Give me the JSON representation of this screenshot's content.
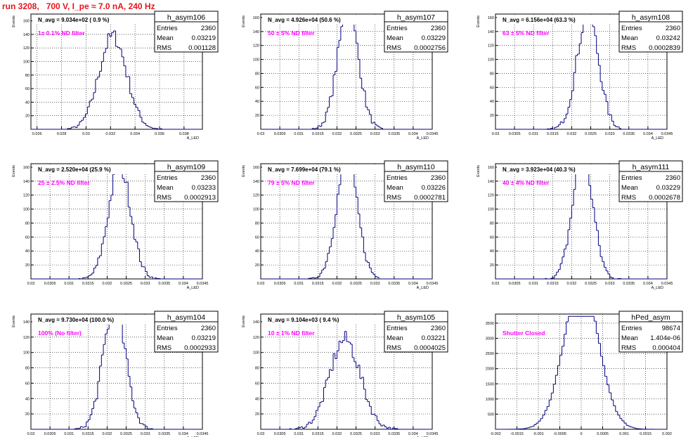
{
  "page_title": "run 3208,   700 V, I_pe ≈ 7.0 nA, 240 Hz",
  "colors": {
    "hist_line": "#000080",
    "frame": "#000000",
    "grid": "#000000",
    "annotation": "#ff00ff",
    "title": "#e8141c"
  },
  "chart_data": [
    {
      "type": "histogram",
      "name": "h_asym106",
      "xlabel": "A_LED",
      "ylabel": "Events",
      "avg_text": "N_avg = 9.034e+02 ( 0.9 %)",
      "filter_text": "1± 0.1% ND filter",
      "stats": {
        "entries": "2360",
        "mean": "0.03219",
        "rms": "0.001128"
      },
      "xlim": [
        0.0255,
        0.0395
      ],
      "ylim": [
        0,
        170
      ],
      "xticks": [
        0.026,
        0.028,
        0.03,
        0.032,
        0.034,
        0.036,
        0.038
      ],
      "xtick_labels": [
        "0.026",
        "0.028",
        "0.03",
        "0.032",
        "0.034",
        "0.036",
        "0.038"
      ],
      "yticks": [
        20,
        40,
        60,
        80,
        100,
        120,
        140,
        160
      ],
      "ytick_labels": [
        "20",
        "40",
        "60",
        "80",
        "100",
        "120",
        "140",
        "160"
      ],
      "grid": true,
      "mean_value": 0.03219,
      "sigma": 0.001128,
      "total": 2360,
      "bins": 85
    },
    {
      "type": "histogram",
      "name": "h_asym107",
      "xlabel": "A_LED",
      "ylabel": "Events",
      "avg_text": "N_avg = 4.926e+04 (50.6 %)",
      "filter_text": "50 ± 5% ND filter",
      "stats": {
        "entries": "2360",
        "mean": "0.03229",
        "rms": "0.0002756"
      },
      "xlim": [
        0.03,
        0.0345
      ],
      "ylim": [
        0,
        165
      ],
      "xticks": [
        0.03,
        0.0305,
        0.031,
        0.0315,
        0.032,
        0.0325,
        0.033,
        0.0335,
        0.034,
        0.0345
      ],
      "xtick_labels": [
        "0.03",
        "0.0305",
        "0.031",
        "0.0315",
        "0.032",
        "0.0325",
        "0.033",
        "0.0335",
        "0.034",
        "0.0345"
      ],
      "yticks": [
        20,
        40,
        60,
        80,
        100,
        120,
        140,
        160
      ],
      "ytick_labels": [
        "20",
        "40",
        "60",
        "80",
        "100",
        "120",
        "140",
        "160"
      ],
      "grid": true,
      "mean_value": 0.03229,
      "sigma": 0.0002756,
      "total": 2360,
      "bins": 90
    },
    {
      "type": "histogram",
      "name": "h_asym108",
      "xlabel": "A_LED",
      "ylabel": "Events",
      "avg_text": "N_avg = 6.156e+04 (63.3 %)",
      "filter_text": "63 ± 5% ND filter",
      "stats": {
        "entries": "2360",
        "mean": "0.03242",
        "rms": "0.0002839"
      },
      "xlim": [
        0.03,
        0.0345
      ],
      "ylim": [
        0,
        165
      ],
      "xticks": [
        0.03,
        0.0305,
        0.031,
        0.0315,
        0.032,
        0.0325,
        0.033,
        0.0335,
        0.034,
        0.0345
      ],
      "xtick_labels": [
        "0.03",
        "0.0305",
        "0.031",
        "0.0315",
        "0.032",
        "0.0325",
        "0.033",
        "0.0335",
        "0.034",
        "0.0345"
      ],
      "yticks": [
        20,
        40,
        60,
        80,
        100,
        120,
        140,
        160
      ],
      "ytick_labels": [
        "20",
        "40",
        "60",
        "80",
        "100",
        "120",
        "140",
        "160"
      ],
      "grid": true,
      "mean_value": 0.03242,
      "sigma": 0.0002839,
      "total": 2360,
      "bins": 90
    },
    {
      "type": "histogram",
      "name": "h_asym109",
      "xlabel": "A_LED",
      "ylabel": "Events",
      "avg_text": "N_avg = 2.520e+04 (25.9 %)",
      "filter_text": "25 ± 2.5% ND filter",
      "stats": {
        "entries": "2360",
        "mean": "0.03233",
        "rms": "0.0002913"
      },
      "xlim": [
        0.03,
        0.0345
      ],
      "ylim": [
        0,
        165
      ],
      "xticks": [
        0.03,
        0.0305,
        0.031,
        0.0315,
        0.032,
        0.0325,
        0.033,
        0.0335,
        0.034,
        0.0345
      ],
      "xtick_labels": [
        "0.03",
        "0.0305",
        "0.031",
        "0.0315",
        "0.032",
        "0.0325",
        "0.033",
        "0.0335",
        "0.034",
        "0.0345"
      ],
      "yticks": [
        20,
        40,
        60,
        80,
        100,
        120,
        140,
        160
      ],
      "ytick_labels": [
        "20",
        "40",
        "60",
        "80",
        "100",
        "120",
        "140",
        "160"
      ],
      "grid": true,
      "mean_value": 0.03233,
      "sigma": 0.0002913,
      "total": 2360,
      "bins": 90
    },
    {
      "type": "histogram",
      "name": "h_asym110",
      "xlabel": "A_LED",
      "ylabel": "Events",
      "avg_text": "N_avg = 7.699e+04 (79.1 %)",
      "filter_text": "79 ± 5% ND filter",
      "stats": {
        "entries": "2360",
        "mean": "0.03226",
        "rms": "0.0002781"
      },
      "xlim": [
        0.03,
        0.0345
      ],
      "ylim": [
        0,
        165
      ],
      "xticks": [
        0.03,
        0.0305,
        0.031,
        0.0315,
        0.032,
        0.0325,
        0.033,
        0.0335,
        0.034,
        0.0345
      ],
      "xtick_labels": [
        "0.03",
        "0.0305",
        "0.031",
        "0.0315",
        "0.032",
        "0.0325",
        "0.033",
        "0.0335",
        "0.034",
        "0.0345"
      ],
      "yticks": [
        20,
        40,
        60,
        80,
        100,
        120,
        140,
        160
      ],
      "ytick_labels": [
        "20",
        "40",
        "60",
        "80",
        "100",
        "120",
        "140",
        "160"
      ],
      "grid": true,
      "mean_value": 0.03226,
      "sigma": 0.0002781,
      "total": 2360,
      "bins": 90
    },
    {
      "type": "histogram",
      "name": "h_asym111",
      "xlabel": "A_LED",
      "ylabel": "Events",
      "avg_text": "N_avg = 3.923e+04 (40.3 %)",
      "filter_text": "40 ± 4% ND filter",
      "stats": {
        "entries": "2360",
        "mean": "0.03229",
        "rms": "0.0002678"
      },
      "xlim": [
        0.03,
        0.0345
      ],
      "ylim": [
        0,
        165
      ],
      "xticks": [
        0.03,
        0.0305,
        0.031,
        0.0315,
        0.032,
        0.0325,
        0.033,
        0.0335,
        0.034,
        0.0345
      ],
      "xtick_labels": [
        "0.03",
        "0.0305",
        "0.031",
        "0.0315",
        "0.032",
        "0.0325",
        "0.033",
        "0.0335",
        "0.034",
        "0.0345"
      ],
      "yticks": [
        20,
        40,
        60,
        80,
        100,
        120,
        140,
        160
      ],
      "ytick_labels": [
        "20",
        "40",
        "60",
        "80",
        "100",
        "120",
        "140",
        "160"
      ],
      "grid": true,
      "mean_value": 0.03229,
      "sigma": 0.0002678,
      "total": 2360,
      "bins": 90
    },
    {
      "type": "histogram",
      "name": "h_asym104",
      "xlabel": "A_LED",
      "ylabel": "Events",
      "avg_text": "N_avg = 9.730e+04 (100.0 %)",
      "filter_text": "100% (No filter)",
      "stats": {
        "entries": "2360",
        "mean": "0.03219",
        "rms": "0.0002933"
      },
      "xlim": [
        0.03,
        0.0345
      ],
      "ylim": [
        0,
        150
      ],
      "xticks": [
        0.03,
        0.0305,
        0.031,
        0.0315,
        0.032,
        0.0325,
        0.033,
        0.0335,
        0.034,
        0.0345
      ],
      "xtick_labels": [
        "0.03",
        "0.0305",
        "0.031",
        "0.0315",
        "0.032",
        "0.0325",
        "0.033",
        "0.0335",
        "0.034",
        "0.0345"
      ],
      "yticks": [
        20,
        40,
        60,
        80,
        100,
        120,
        140
      ],
      "ytick_labels": [
        "20",
        "40",
        "60",
        "80",
        "100",
        "120",
        "140"
      ],
      "grid": true,
      "mean_value": 0.03219,
      "sigma": 0.0002933,
      "total": 2360,
      "bins": 90
    },
    {
      "type": "histogram",
      "name": "h_asym105",
      "xlabel": "A_LED",
      "ylabel": "Events",
      "avg_text": "N_avg = 9.104e+03 ( 9.4 %)",
      "filter_text": "10 ± 1% ND filter",
      "stats": {
        "entries": "2360",
        "mean": "0.03221",
        "rms": "0.0004025"
      },
      "xlim": [
        0.03,
        0.0345
      ],
      "ylim": [
        0,
        150
      ],
      "xticks": [
        0.03,
        0.0305,
        0.031,
        0.0315,
        0.032,
        0.0325,
        0.033,
        0.0335,
        0.034,
        0.0345
      ],
      "xtick_labels": [
        "0.03",
        "0.0305",
        "0.031",
        "0.0315",
        "0.032",
        "0.0325",
        "0.033",
        "0.0335",
        "0.034",
        "0.0345"
      ],
      "yticks": [
        20,
        40,
        60,
        80,
        100,
        120,
        140
      ],
      "ytick_labels": [
        "20",
        "40",
        "60",
        "80",
        "100",
        "120",
        "140"
      ],
      "grid": true,
      "mean_value": 0.03221,
      "sigma": 0.0004025,
      "total": 2360,
      "bins": 90
    },
    {
      "type": "histogram",
      "name": "hPed_asym",
      "xlabel": "",
      "ylabel": "",
      "avg_text": "",
      "filter_text": "Shutter Closed",
      "stats": {
        "entries": "98674",
        "mean": "1.404e-06",
        "rms": "0.000404"
      },
      "xlim": [
        -0.002,
        0.002
      ],
      "ylim": [
        0,
        3800
      ],
      "xticks": [
        -0.002,
        -0.0015,
        -0.001,
        -0.0005,
        0,
        0.0005,
        0.001,
        0.0015,
        0.002
      ],
      "xtick_labels": [
        "-0.002",
        "-0.0015",
        "-0.001",
        "-0.0005",
        "0",
        "0.0005",
        "0.001",
        "0.0015",
        "0.002"
      ],
      "yticks": [
        500,
        1000,
        1500,
        2000,
        2500,
        3000,
        3500
      ],
      "ytick_labels": [
        "500",
        "1000",
        "1500",
        "2000",
        "2500",
        "3000",
        "3500"
      ],
      "grid": true,
      "mean_value": 1.4e-06,
      "sigma": 0.000404,
      "total": 98674,
      "bins": 80
    }
  ]
}
